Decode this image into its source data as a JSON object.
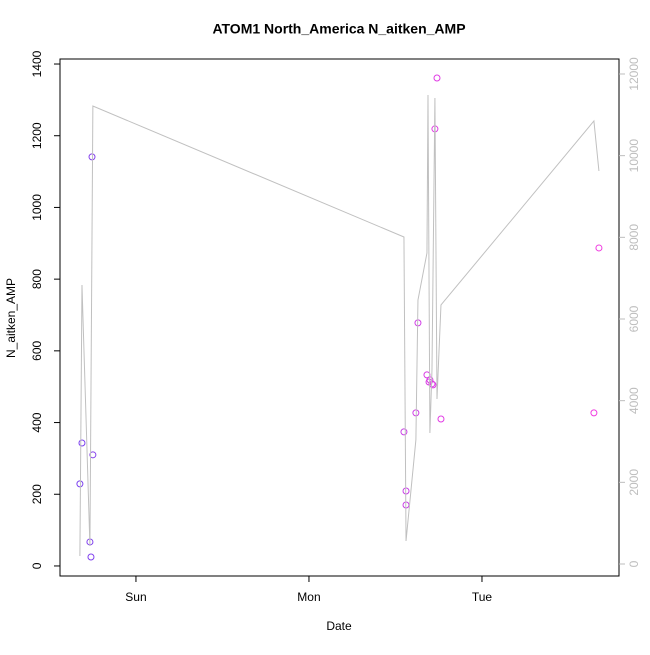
{
  "chart_data": {
    "type": "scatter",
    "title": "ATOM1 North_America N_aitken_AMP",
    "x_label": "Date",
    "y_label": "N_aitken_AMP",
    "xlim": [
      -0.439,
      2.792
    ],
    "xticks": [
      {
        "value": 0,
        "label": "Sun"
      },
      {
        "value": 1,
        "label": "Mon"
      },
      {
        "value": 2,
        "label": "Tue"
      }
    ],
    "ylim": [
      -28,
      1414
    ],
    "yticks": [
      0,
      200,
      400,
      600,
      800,
      1000,
      1200,
      1400
    ],
    "y2lim": [
      -294,
      12367
    ],
    "y2ticks": [
      0,
      2000,
      4000,
      6000,
      8000,
      10000,
      12000
    ],
    "y2_color": "#bdbdbd",
    "series": [
      {
        "type": "scatter",
        "x": [
          -0.324,
          -0.312,
          -0.266,
          -0.26,
          -0.254,
          -0.249,
          1.549,
          1.561,
          1.561,
          1.618,
          1.63,
          1.682,
          1.694,
          1.699,
          1.711,
          1.717,
          1.728,
          1.74,
          1.763,
          2.647,
          2.676
        ],
        "values": [
          229,
          343,
          67,
          25,
          1141,
          310,
          374,
          209,
          170,
          427,
          678,
          533,
          513,
          519,
          508,
          505,
          1219,
          1361,
          410,
          427,
          887
        ],
        "colors": [
          "#7b3ff0",
          "#7b3ff0",
          "#8040ee",
          "#8040ee",
          "#8540ec",
          "#8540ec",
          "#c83ee6",
          "#c83ee6",
          "#c83ee6",
          "#d03de6",
          "#d03de6",
          "#d83ce4",
          "#d83ce4",
          "#d83ce4",
          "#dc3ce4",
          "#dc3ce4",
          "#e03be4",
          "#e03be4",
          "#e23be4",
          "#f03ae0",
          "#f03ae0"
        ]
      },
      {
        "type": "line",
        "axis": "y2",
        "color": "#c0c0c0",
        "x": [
          -0.324,
          -0.312,
          -0.266,
          -0.249,
          1.549,
          1.561,
          1.618,
          1.63,
          1.682,
          1.688,
          1.699,
          1.711,
          1.728,
          1.74,
          1.763,
          2.647,
          2.676
        ],
        "values": [
          196,
          6833,
          441,
          11216,
          8008,
          563,
          3037,
          6465,
          7616,
          11486,
          3208,
          4751,
          11412,
          4041,
          6343,
          10849,
          9624
        ]
      }
    ]
  }
}
